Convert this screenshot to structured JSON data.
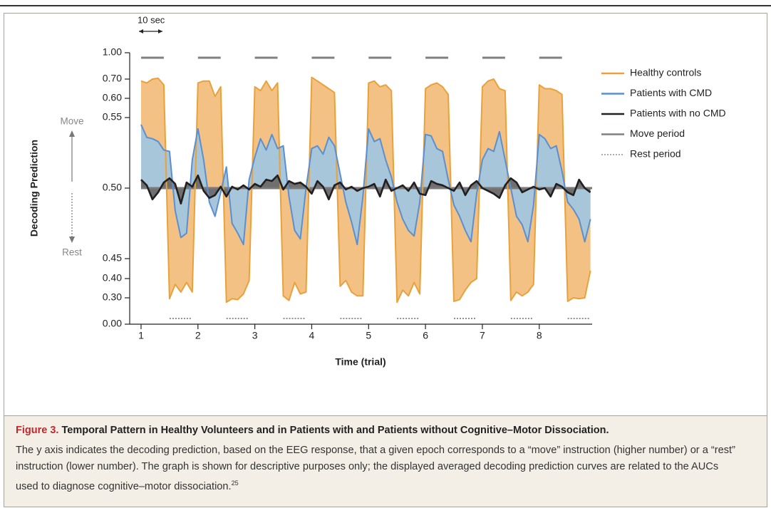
{
  "chart_data": {
    "type": "area-line",
    "y_label": "Decoding Prediction",
    "x_label": "Time (trial)",
    "annotation_scale": "10 sec",
    "annotation_move": "Move",
    "annotation_rest": "Rest",
    "xlim": [
      0.8,
      8.93
    ],
    "xticks": [
      1,
      2,
      3,
      4,
      5,
      6,
      7,
      8
    ],
    "ylim": [
      0,
      1
    ],
    "yticks": [
      {
        "value": 0,
        "label": "0.00"
      },
      {
        "value": 0.3,
        "label": "0.30"
      },
      {
        "value": 0.4,
        "label": "0.40"
      },
      {
        "value": 0.45,
        "label": "0.45"
      },
      {
        "value": 0.5,
        "label": "0.50"
      },
      {
        "value": 0.55,
        "label": "0.55"
      },
      {
        "value": 0.6,
        "label": "0.60"
      },
      {
        "value": 0.7,
        "label": "0.70"
      },
      {
        "value": 1,
        "label": "1.00"
      }
    ],
    "baseline": 0.5,
    "x": [
      1,
      1.1,
      1.2,
      1.3,
      1.4,
      1.5,
      1.6,
      1.7,
      1.8,
      1.9,
      2,
      2.1,
      2.2,
      2.3,
      2.4,
      2.5,
      2.6,
      2.7,
      2.8,
      2.9,
      3,
      3.1,
      3.2,
      3.3,
      3.4,
      3.5,
      3.6,
      3.7,
      3.8,
      3.9,
      4,
      4.1,
      4.2,
      4.3,
      4.4,
      4.5,
      4.6,
      4.7,
      4.8,
      4.9,
      5,
      5.1,
      5.2,
      5.3,
      5.4,
      5.5,
      5.6,
      5.7,
      5.8,
      5.9,
      6,
      6.1,
      6.2,
      6.3,
      6.4,
      6.5,
      6.6,
      6.7,
      6.8,
      6.9,
      7,
      7.1,
      7.2,
      7.3,
      7.4,
      7.5,
      7.6,
      7.7,
      7.8,
      7.9,
      8,
      8.1,
      8.2,
      8.3,
      8.4,
      8.5,
      8.6,
      8.7,
      8.8,
      8.9
    ],
    "series": [
      {
        "name": "Healthy controls",
        "color": "#e9a13b",
        "fill": "#f2c183",
        "values": [
          0.69,
          0.68,
          0.7,
          0.71,
          0.67,
          0.29,
          0.37,
          0.33,
          0.38,
          0.33,
          0.68,
          0.69,
          0.69,
          0.61,
          0.66,
          0.25,
          0.29,
          0.28,
          0.32,
          0.39,
          0.66,
          0.64,
          0.69,
          0.64,
          0.68,
          0.31,
          0.27,
          0.38,
          0.32,
          0.33,
          0.72,
          0.69,
          0.67,
          0.65,
          0.63,
          0.36,
          0.39,
          0.33,
          0.31,
          0.31,
          0.68,
          0.69,
          0.66,
          0.67,
          0.64,
          0.25,
          0.34,
          0.31,
          0.38,
          0.32,
          0.65,
          0.67,
          0.68,
          0.66,
          0.62,
          0.26,
          0.28,
          0.34,
          0.38,
          0.4,
          0.66,
          0.69,
          0.7,
          0.65,
          0.64,
          0.27,
          0.33,
          0.31,
          0.33,
          0.37,
          0.67,
          0.65,
          0.65,
          0.64,
          0.62,
          0.26,
          0.3,
          0.29,
          0.3,
          0.42
        ]
      },
      {
        "name": "Patients with CMD",
        "color": "#5b8fd0",
        "fill": "#a8c6da",
        "values": [
          0.545,
          0.536,
          0.535,
          0.533,
          0.527,
          0.526,
          0.484,
          0.465,
          0.468,
          0.52,
          0.542,
          0.52,
          0.49,
          0.48,
          0.497,
          0.515,
          0.475,
          0.468,
          0.46,
          0.506,
          0.522,
          0.535,
          0.527,
          0.538,
          0.528,
          0.53,
          0.494,
          0.47,
          0.464,
          0.5,
          0.528,
          0.53,
          0.524,
          0.536,
          0.53,
          0.51,
          0.49,
          0.476,
          0.46,
          0.494,
          0.542,
          0.533,
          0.535,
          0.52,
          0.508,
          0.49,
          0.478,
          0.47,
          0.466,
          0.49,
          0.538,
          0.537,
          0.528,
          0.526,
          0.506,
          0.488,
          0.48,
          0.47,
          0.462,
          0.496,
          0.52,
          0.528,
          0.526,
          0.54,
          0.52,
          0.5,
          0.48,
          0.474,
          0.462,
          0.488,
          0.538,
          0.535,
          0.528,
          0.53,
          0.512,
          0.49,
          0.485,
          0.478,
          0.462,
          0.478
        ]
      },
      {
        "name": "Patients with no CMD",
        "color": "#231f20",
        "fill": "#6f6f6f",
        "values": [
          0.506,
          0.502,
          0.492,
          0.497,
          0.504,
          0.507,
          0.503,
          0.489,
          0.504,
          0.501,
          0.509,
          0.498,
          0.493,
          0.495,
          0.501,
          0.494,
          0.501,
          0.499,
          0.502,
          0.499,
          0.503,
          0.501,
          0.506,
          0.505,
          0.509,
          0.499,
          0.505,
          0.503,
          0.504,
          0.501,
          0.496,
          0.505,
          0.501,
          0.492,
          0.502,
          0.504,
          0.499,
          0.501,
          0.498,
          0.5,
          0.501,
          0.503,
          0.494,
          0.506,
          0.498,
          0.5,
          0.502,
          0.498,
          0.504,
          0.496,
          0.495,
          0.505,
          0.503,
          0.502,
          0.5,
          0.498,
          0.504,
          0.495,
          0.502,
          0.505,
          0.5,
          0.498,
          0.496,
          0.493,
          0.502,
          0.507,
          0.504,
          0.497,
          0.499,
          0.501,
          0.499,
          0.5,
          0.494,
          0.503,
          0.501,
          0.497,
          0.495,
          0.506,
          0.5,
          0.497
        ]
      }
    ],
    "legend_extra": [
      {
        "name": "Move period",
        "color": "#808080",
        "style": "solid"
      },
      {
        "name": "Rest period",
        "color": "#909090",
        "style": "dotted"
      }
    ]
  },
  "caption": {
    "label": "Figure 3.",
    "title": "Temporal Pattern in Healthy Volunteers and in Patients with and Patients without Cognitive–Motor Dissociation.",
    "body": "The y axis indicates the decoding prediction, based on the EEG response, that a given epoch corresponds to a “move” instruction (higher number) or a “rest” instruction (lower number). The graph is shown for descriptive purposes only; the displayed averaged decoding prediction curves are related to the AUCs used to diagnose cognitive–motor dissociation.",
    "ref": "25"
  }
}
